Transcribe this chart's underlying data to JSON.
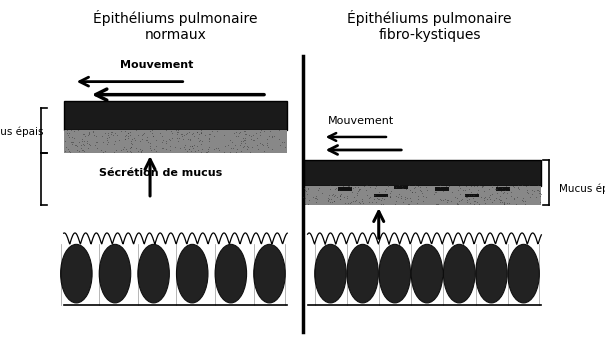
{
  "title_left": "Épithéliums pulmonaire\nnormaux",
  "title_right": "Épithéliums pulmonaire\nfibro-kystiques",
  "label_mucus_left": "Mucus épais",
  "label_mucus_right": "Mucus épais",
  "label_secretion": "Sécrétion de mucus",
  "label_mouvement_left": "Mouvement",
  "label_mouvement_right": "Mouvement",
  "bg_color": "#ffffff",
  "fig_width": 6.05,
  "fig_height": 3.39,
  "dpi": 100
}
